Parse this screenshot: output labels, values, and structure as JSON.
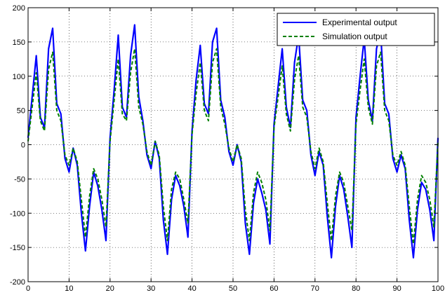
{
  "chart_data": {
    "type": "line",
    "title": "",
    "xlabel": "",
    "ylabel": "",
    "xlim": [
      0,
      100
    ],
    "ylim": [
      -200,
      200
    ],
    "x_ticks": [
      0,
      10,
      20,
      30,
      40,
      50,
      60,
      70,
      80,
      90,
      100
    ],
    "y_ticks": [
      -200,
      -150,
      -100,
      -50,
      0,
      50,
      100,
      150,
      200
    ],
    "grid": true,
    "legend_position": "top-right",
    "x": [
      0,
      1,
      2,
      3,
      4,
      5,
      6,
      7,
      8,
      9,
      10,
      11,
      12,
      13,
      14,
      15,
      16,
      17,
      18,
      19,
      20,
      21,
      22,
      23,
      24,
      25,
      26,
      27,
      28,
      29,
      30,
      31,
      32,
      33,
      34,
      35,
      36,
      37,
      38,
      39,
      40,
      41,
      42,
      43,
      44,
      45,
      46,
      47,
      48,
      49,
      50,
      51,
      52,
      53,
      54,
      55,
      56,
      57,
      58,
      59,
      60,
      61,
      62,
      63,
      64,
      65,
      66,
      67,
      68,
      69,
      70,
      71,
      72,
      73,
      74,
      75,
      76,
      77,
      78,
      79,
      80,
      81,
      82,
      83,
      84,
      85,
      86,
      87,
      88,
      89,
      90,
      91,
      92,
      93,
      94,
      95,
      96,
      97,
      98,
      99,
      100
    ],
    "series": [
      {
        "name": "Experimental output",
        "color": "#0000ff",
        "style": "solid",
        "values": [
          10,
          70,
          130,
          40,
          25,
          140,
          170,
          60,
          45,
          -20,
          -40,
          -5,
          -30,
          -100,
          -155,
          -90,
          -40,
          -60,
          -95,
          -140,
          10,
          80,
          160,
          55,
          40,
          130,
          175,
          70,
          35,
          -15,
          -35,
          5,
          -20,
          -110,
          -160,
          -80,
          -45,
          -60,
          -90,
          -135,
          20,
          95,
          145,
          60,
          45,
          150,
          170,
          65,
          40,
          -10,
          -30,
          0,
          -25,
          -115,
          -160,
          -85,
          -50,
          -70,
          -95,
          -145,
          30,
          85,
          140,
          55,
          25,
          120,
          160,
          65,
          50,
          -15,
          -45,
          -10,
          -30,
          -105,
          -165,
          -90,
          -45,
          -65,
          -105,
          -150,
          40,
          100,
          155,
          65,
          35,
          140,
          165,
          60,
          45,
          -20,
          -40,
          -15,
          -35,
          -110,
          -165,
          -95,
          -55,
          -65,
          -95,
          -140,
          10
        ]
      },
      {
        "name": "Simulation output",
        "color": "#008000",
        "style": "dashed",
        "values": [
          5,
          55,
          105,
          35,
          20,
          110,
          135,
          50,
          35,
          -15,
          -30,
          -5,
          -25,
          -80,
          -135,
          -75,
          -35,
          -50,
          -80,
          -120,
          5,
          65,
          125,
          45,
          35,
          105,
          140,
          55,
          30,
          -10,
          -30,
          5,
          -15,
          -90,
          -140,
          -65,
          -40,
          -50,
          -80,
          -115,
          15,
          75,
          120,
          50,
          35,
          120,
          140,
          55,
          30,
          -5,
          -25,
          0,
          -20,
          -95,
          -140,
          -70,
          -40,
          -55,
          -80,
          -125,
          25,
          70,
          115,
          45,
          20,
          95,
          130,
          55,
          40,
          -10,
          -35,
          -5,
          -25,
          -85,
          -140,
          -75,
          -40,
          -55,
          -90,
          -125,
          30,
          80,
          125,
          55,
          30,
          115,
          135,
          50,
          35,
          -15,
          -30,
          -10,
          -30,
          -90,
          -145,
          -80,
          -45,
          -55,
          -80,
          -120,
          5
        ]
      }
    ]
  }
}
